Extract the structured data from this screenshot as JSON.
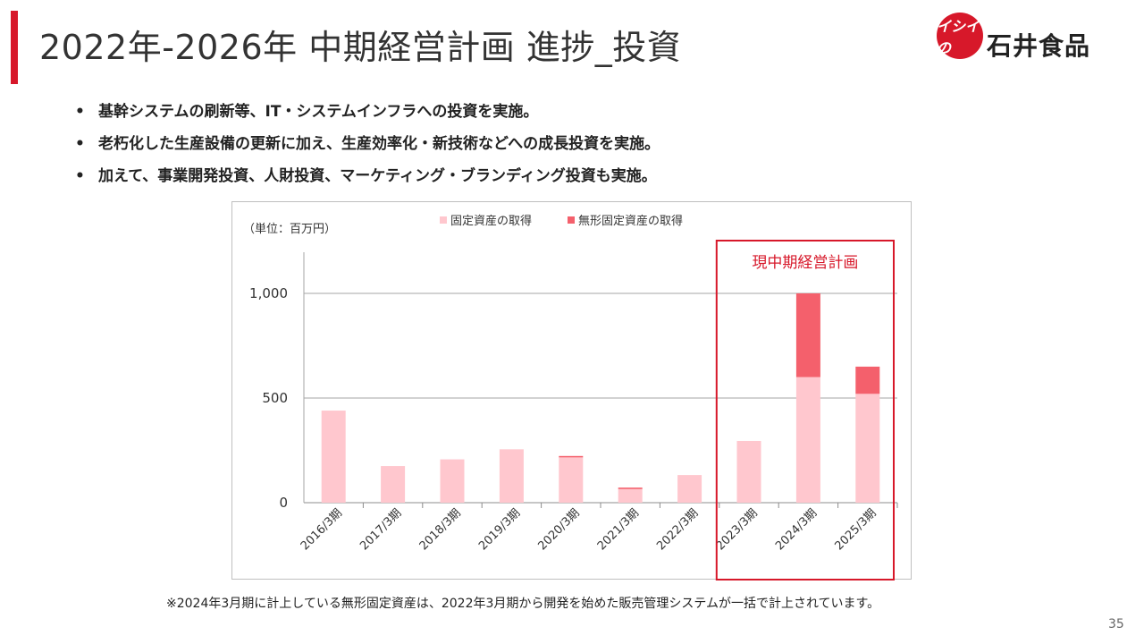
{
  "header": {
    "title": "2022年-2026年  中期経営計画  進捗_投資",
    "logo_mark": "イシイの",
    "logo_text": "石井食品"
  },
  "bullets": [
    "基幹システムの刷新等、IT・システムインフラへの投資を実施。",
    "老朽化した生産設備の更新に加え、生産効率化・新技術などへの成長投資を実施。",
    "加えて、事業開発投資、人財投資、マーケティング・ブランディング投資も実施。"
  ],
  "bullet_symbol": "•",
  "chart_data": {
    "type": "bar",
    "stacked": true,
    "unit_label": "（単位：百万円）",
    "categories": [
      "2016/3期",
      "2017/3期",
      "2018/3期",
      "2019/3期",
      "2020/3期",
      "2021/3期",
      "2022/3期",
      "2023/3期",
      "2024/3期",
      "2025/3期"
    ],
    "series": [
      {
        "name": "固定資産の取得",
        "color": "#ffc7ce",
        "values": [
          440,
          175,
          207,
          255,
          218,
          65,
          132,
          295,
          600,
          520
        ]
      },
      {
        "name": "無形固定資産の取得",
        "color": "#f4606c",
        "values": [
          0,
          0,
          0,
          0,
          5,
          7,
          0,
          0,
          400,
          130
        ]
      }
    ],
    "ylim": [
      0,
      1000
    ],
    "yticks": [
      0,
      500,
      1000
    ],
    "ytick_labels": [
      "0",
      "500",
      "1,000"
    ],
    "grid": true,
    "legend_position": "top",
    "highlight": {
      "label": "現中期経営計画",
      "categories": [
        "2023/3期",
        "2024/3期",
        "2025/3期"
      ],
      "color": "#d7182a"
    }
  },
  "footnote": "※2024年3月期に計上している無形固定資産は、2022年3月期から開発を始めた販売管理システムが一括で計上されています。",
  "page_number": "35"
}
